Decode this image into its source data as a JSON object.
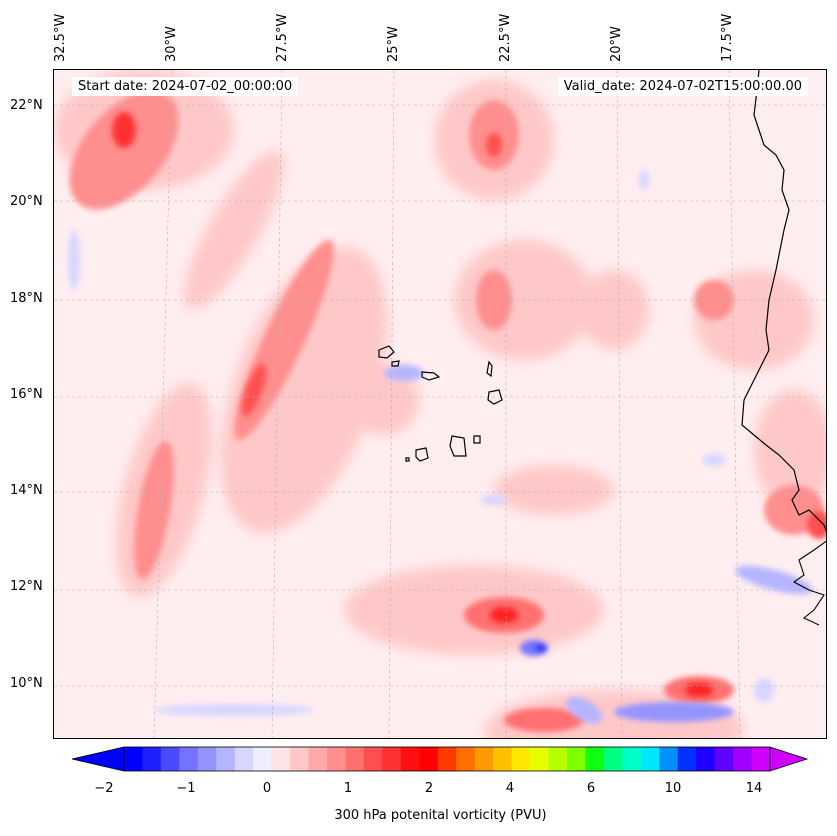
{
  "map": {
    "start_date": "Start date: 2024-07-02_00:00:00",
    "valid_date": "Valid_date: 2024-07-02T15:00:00.00",
    "lon_labels": [
      "32.5°W",
      "30°W",
      "27.5°W",
      "25°W",
      "22.5°W",
      "20°W",
      "17.5°W"
    ],
    "lat_labels": [
      "22°N",
      "20°N",
      "18°N",
      "16°N",
      "14°N",
      "12°N",
      "10°N"
    ],
    "colors": {
      "background_low": "#ffeef0",
      "coastline": "#000000"
    }
  },
  "colorbar": {
    "label": "300 hPa potenital vorticity (PVU)",
    "tick_labels": [
      "−2",
      "−1",
      "0",
      "1",
      "2",
      "4",
      "6",
      "10",
      "14"
    ],
    "colors": [
      "#0000ff",
      "#2020ff",
      "#4a4aff",
      "#7373ff",
      "#9494ff",
      "#b5b5ff",
      "#d6d6ff",
      "#eeeeff",
      "#ffe4e4",
      "#ffc8c8",
      "#ffaaaa",
      "#ff8e8e",
      "#ff7070",
      "#ff5050",
      "#ff3030",
      "#ff1010",
      "#ff0000",
      "#ff3a00",
      "#ff7000",
      "#ff9a00",
      "#ffc000",
      "#ffe800",
      "#e8ff00",
      "#b6ff00",
      "#7dff00",
      "#10ff10",
      "#00ff80",
      "#00ffc8",
      "#00e8ff",
      "#0090ff",
      "#0030ff",
      "#2000ff",
      "#6000ff",
      "#a000ff",
      "#d000ff"
    ]
  }
}
